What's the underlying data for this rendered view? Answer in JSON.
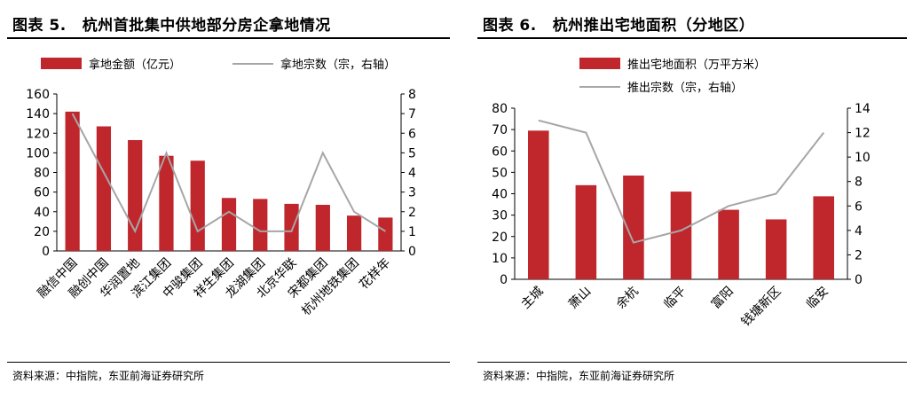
{
  "left_panel": {
    "label": "图表 5.",
    "title": "杭州首批集中供地部分房企拿地情况",
    "source": "资料来源：中指院，东亚前海证券研究所"
  },
  "right_panel": {
    "label": "图表 6.",
    "title": "杭州推出宅地面积（分地区）",
    "source": "资料来源：中指院，东亚前海证券研究所"
  },
  "colors": {
    "bar": "#c0272d",
    "line": "#a6a6a6"
  },
  "chart_data": [
    {
      "type": "bar",
      "categories": [
        "融信中国",
        "融创中国",
        "华润置地",
        "滨江集团",
        "中骏集团",
        "祥生集团",
        "龙湖集团",
        "北京华联",
        "宋都集团",
        "杭州地铁集团",
        "花样年"
      ],
      "series": [
        {
          "name": "拿地金额（亿元）",
          "type": "bar",
          "axis": "left",
          "values": [
            142,
            127,
            113,
            97,
            92,
            54,
            53,
            48,
            47,
            36,
            34
          ]
        },
        {
          "name": "拿地宗数（宗，右轴）",
          "type": "line",
          "axis": "right",
          "values": [
            7,
            4,
            1,
            5,
            1,
            2,
            1,
            1,
            5,
            2,
            1
          ]
        }
      ],
      "y_left": {
        "lim": [
          0,
          160
        ],
        "ticks": [
          "0",
          "20",
          "40",
          "60",
          "80",
          "100",
          "120",
          "140",
          "160"
        ]
      },
      "y_right": {
        "lim": [
          0,
          8
        ],
        "ticks": [
          "0",
          "1",
          "2",
          "3",
          "4",
          "5",
          "6",
          "7",
          "8"
        ]
      },
      "legend_position": "top"
    },
    {
      "type": "bar",
      "categories": [
        "主城",
        "萧山",
        "余杭",
        "临平",
        "富阳",
        "钱塘新区",
        "临安"
      ],
      "series": [
        {
          "name": "推出宅地面积（万平方米）",
          "type": "bar",
          "axis": "left",
          "values": [
            69.5,
            44,
            48.5,
            41,
            32.5,
            28,
            38.8
          ]
        },
        {
          "name": "推出宗数（宗，右轴）",
          "type": "line",
          "axis": "right",
          "values": [
            13,
            12,
            3,
            4,
            6,
            7,
            12
          ]
        }
      ],
      "y_left": {
        "lim": [
          0,
          80
        ],
        "ticks": [
          "0",
          "10",
          "20",
          "30",
          "40",
          "50",
          "60",
          "70",
          "80"
        ]
      },
      "y_right": {
        "lim": [
          0,
          14
        ],
        "ticks": [
          "0",
          "2",
          "4",
          "6",
          "8",
          "10",
          "12",
          "14"
        ]
      },
      "legend_position": "top"
    }
  ]
}
